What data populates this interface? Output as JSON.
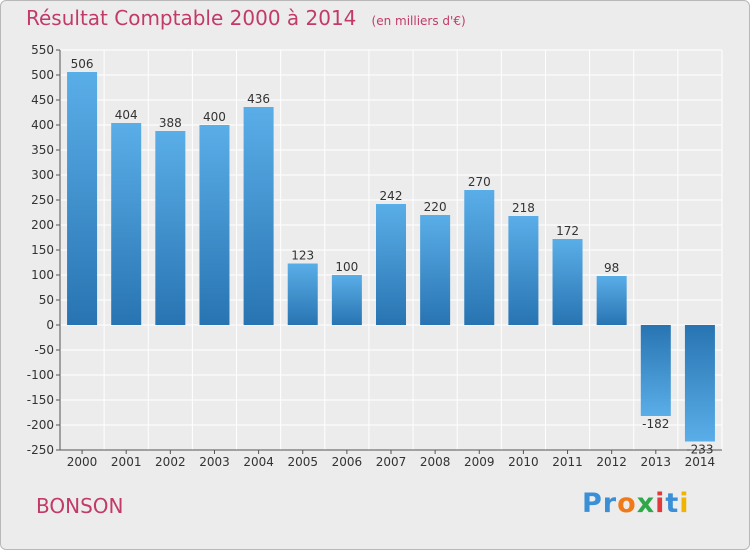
{
  "title": "Résultat Comptable 2000 à 2014",
  "unit": "(en milliers d'€)",
  "commune": "BONSON",
  "logo": {
    "letters": [
      "P",
      "r",
      "o",
      "x",
      "i",
      "t",
      "i"
    ],
    "colors": [
      "#3a8fd6",
      "#3a8fd6",
      "#f07a1a",
      "#2fa84a",
      "#e23a3a",
      "#3a8fd6",
      "#f0b400"
    ]
  },
  "colors": {
    "title": "#c23a6a",
    "bar_top": "#5aaee8",
    "bar_bottom": "#2874b2",
    "plot_bg": "#ececec",
    "grid": "#ffffff"
  },
  "chart_data": {
    "type": "bar",
    "title": "Résultat Comptable 2000 à 2014",
    "categories": [
      "2000",
      "2001",
      "2002",
      "2003",
      "2004",
      "2005",
      "2006",
      "2007",
      "2008",
      "2009",
      "2010",
      "2011",
      "2012",
      "2013",
      "2014"
    ],
    "values": [
      506,
      404,
      388,
      400,
      436,
      123,
      100,
      242,
      220,
      270,
      218,
      172,
      98,
      -182,
      -233
    ],
    "data_labels": [
      "506",
      "404",
      "388",
      "400",
      "436",
      "123",
      "100",
      "242",
      "220",
      "270",
      "218",
      "172",
      "98",
      "-182",
      "-233"
    ],
    "ylim": [
      -250,
      550
    ],
    "yticks": [
      -250,
      -200,
      -150,
      -100,
      -50,
      0,
      50,
      100,
      150,
      200,
      250,
      300,
      350,
      400,
      450,
      500,
      550
    ],
    "grid": true,
    "xlabel": "",
    "ylabel": ""
  }
}
